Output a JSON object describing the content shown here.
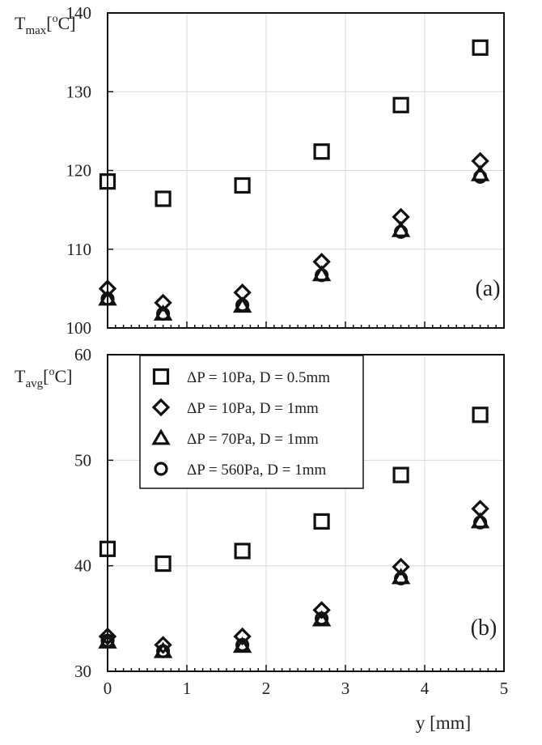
{
  "chart_data": [
    {
      "type": "scatter",
      "panel_label": "(a)",
      "ylabel_main": "T",
      "ylabel_sub": "max",
      "ylabel_open": "[",
      "ylabel_sup": "o",
      "ylabel_tail": "C]",
      "ylim": [
        100,
        140
      ],
      "yticks": [
        "100",
        "110",
        "120",
        "130",
        "140"
      ],
      "xlim": [
        0,
        5
      ],
      "grid": true,
      "x": [
        0,
        0.7,
        1.7,
        2.7,
        3.7,
        4.7
      ],
      "series": [
        {
          "name": "ΔP = 10Pa, D = 0.5mm",
          "marker": "square",
          "values": [
            118.6,
            116.4,
            118.1,
            122.4,
            128.3,
            135.6
          ]
        },
        {
          "name": "ΔP = 10Pa, D = 1mm",
          "marker": "diamond",
          "values": [
            105.0,
            103.2,
            104.5,
            108.4,
            114.1,
            121.2
          ]
        },
        {
          "name": "ΔP = 70Pa, D = 1mm",
          "marker": "triangle",
          "values": [
            103.7,
            101.8,
            102.8,
            106.8,
            112.4,
            119.5
          ]
        },
        {
          "name": "ΔP = 560Pa, D = 1mm",
          "marker": "circle",
          "values": [
            103.7,
            101.8,
            102.9,
            106.7,
            112.2,
            119.2
          ]
        }
      ]
    },
    {
      "type": "scatter",
      "panel_label": "(b)",
      "ylabel_main": "T",
      "ylabel_sub": "avg",
      "ylabel_open": "[",
      "ylabel_sup": "o",
      "ylabel_tail": "C]",
      "ylim": [
        30,
        60
      ],
      "yticks": [
        "30",
        "40",
        "50",
        "60"
      ],
      "xlim": [
        0,
        5
      ],
      "xticks": [
        "0",
        "1",
        "2",
        "3",
        "4",
        "5"
      ],
      "xlabel": "y [mm]",
      "grid": true,
      "legend_position": "top-left",
      "x": [
        0,
        0.7,
        1.7,
        2.7,
        3.7,
        4.7
      ],
      "series": [
        {
          "name": "ΔP = 10Pa, D = 0.5mm",
          "marker": "square",
          "values": [
            41.6,
            40.2,
            41.4,
            44.2,
            48.6,
            54.3
          ]
        },
        {
          "name": "ΔP = 10Pa, D = 1mm",
          "marker": "diamond",
          "values": [
            33.3,
            32.5,
            33.3,
            35.8,
            39.9,
            45.4
          ]
        },
        {
          "name": "ΔP = 70Pa, D = 1mm",
          "marker": "triangle",
          "values": [
            32.8,
            31.9,
            32.4,
            34.9,
            38.9,
            44.2
          ]
        },
        {
          "name": "ΔP = 560Pa, D = 1mm",
          "marker": "circle",
          "values": [
            32.9,
            31.9,
            32.5,
            35.0,
            38.8,
            44.1
          ]
        }
      ]
    }
  ]
}
